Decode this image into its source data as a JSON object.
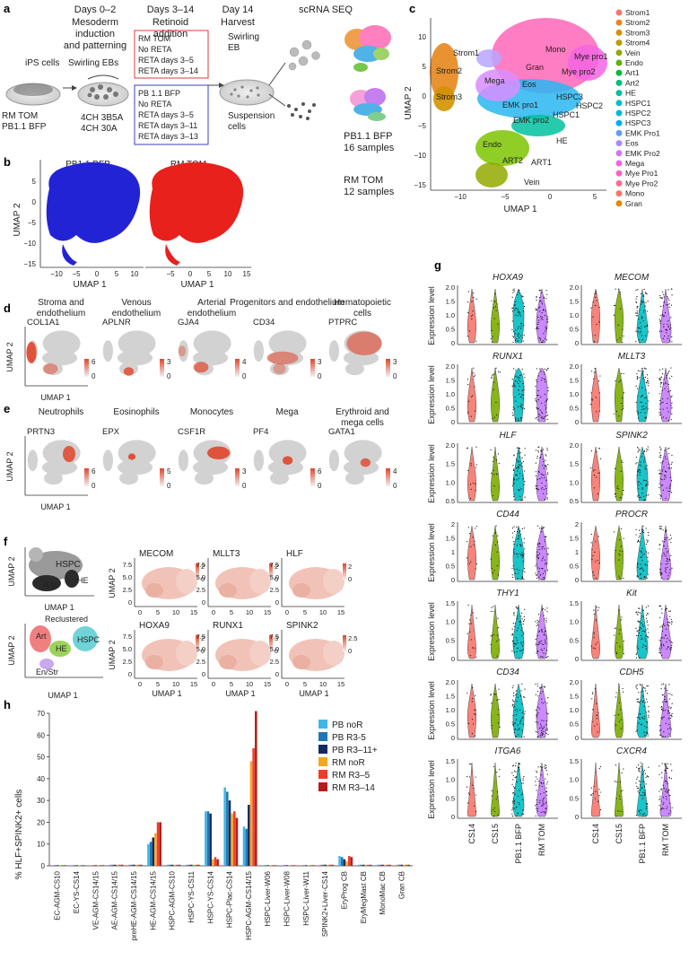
{
  "panel_labels": {
    "a": "a",
    "b": "b",
    "c": "c",
    "d": "d",
    "e": "e",
    "f": "f",
    "g": "g",
    "h": "h"
  },
  "panel_a": {
    "steps": [
      {
        "day": "Days 0–2",
        "desc": [
          "Mesoderm",
          "induction",
          "and patterning"
        ]
      },
      {
        "day": "Days 3–14",
        "desc": [
          "Retinoid",
          "addition"
        ]
      },
      {
        "day": "Day 14",
        "desc": [
          "Harvest"
        ]
      }
    ],
    "scrna": "scRNA SEQ",
    "ips": "iPS cells",
    "swirling_ebs": "Swirling EBs",
    "swirling_eb": [
      "Swirling",
      "EB"
    ],
    "rm_tom": "RM TOM",
    "pb_bfp": "PB1.1 BFP",
    "media": [
      "4CH 3B5A",
      "4CH 30A"
    ],
    "suspension": [
      "Suspension",
      "cells"
    ],
    "rm_box": [
      "RM TOM",
      "No RETA",
      "RETA days 3–5",
      "RETA days 3–14"
    ],
    "pb_box": [
      "PB 1.1 BFP",
      "No RETA",
      "RETA days 3–5",
      "RETA days 3–11",
      "RETA days 3–13"
    ],
    "pb_samples": [
      "PB1.1 BFP",
      "16 samples"
    ],
    "rm_samples": [
      "RM TOM",
      "12 samples"
    ]
  },
  "panel_b": {
    "titles": [
      "PB1.1 BFP",
      "RM TOM"
    ],
    "xlabel": "UMAP 1",
    "ylabel": "UMAP 2",
    "xticks": [
      "−10",
      "−5",
      "0",
      "5",
      "10",
      "−5",
      "0",
      "5",
      "10",
      "15"
    ],
    "yticks": [
      "5",
      "0",
      "−5",
      "−10",
      "−15"
    ]
  },
  "panel_c": {
    "xlabel": "UMAP 1",
    "ylabel": "UMAP 2",
    "xticks": [
      "−10",
      "−5",
      "0",
      "5"
    ],
    "yticks": [
      "10",
      "5",
      "0",
      "−5",
      "−10",
      "−15"
    ],
    "clusters": [
      {
        "name": "Strom1",
        "color": "#f8766d"
      },
      {
        "name": "Strom2",
        "color": "#e7861b"
      },
      {
        "name": "Strom3",
        "color": "#d39200"
      },
      {
        "name": "Strom4",
        "color": "#b79f00"
      },
      {
        "name": "Vein",
        "color": "#93aa00"
      },
      {
        "name": "Endo",
        "color": "#5eb300"
      },
      {
        "name": "Art1",
        "color": "#00ba38"
      },
      {
        "name": "Art2",
        "color": "#00bf74"
      },
      {
        "name": "HE",
        "color": "#00c19f"
      },
      {
        "name": "HSPC1",
        "color": "#00bfc4"
      },
      {
        "name": "HSPC2",
        "color": "#00b9e3"
      },
      {
        "name": "HSPC3",
        "color": "#00adfa"
      },
      {
        "name": "EMK Pro1",
        "color": "#619cff"
      },
      {
        "name": "Eos",
        "color": "#ae87ff"
      },
      {
        "name": "EMK Pro2",
        "color": "#db72fb"
      },
      {
        "name": "Mega",
        "color": "#f564e3"
      },
      {
        "name": "Mye Pro1",
        "color": "#ff61c3"
      },
      {
        "name": "Mye Pro2",
        "color": "#ff6c91"
      },
      {
        "name": "Mono",
        "color": "#f8766d"
      },
      {
        "name": "Gran",
        "color": "#e58700"
      }
    ],
    "annotations": [
      "Strom1",
      "Strom2",
      "Strom3",
      "Mega",
      "Gran",
      "Mono",
      "Mye pro1",
      "Mye pro2",
      "Eos",
      "HSPC3",
      "HSPC2",
      "HSPC1",
      "EMK pro1",
      "EMK pro2",
      "HE",
      "Endo",
      "ART2",
      "ART1",
      "Vein"
    ]
  },
  "panel_d": {
    "titles": [
      "Stroma and\nendothelium",
      "Venous\nendothelium",
      "Arterial\nendothelium",
      "Progenitors and endothelium",
      "Hematopoietic\ncells"
    ],
    "genes": [
      "COL1A1",
      "APLNR",
      "GJA4",
      "CD34",
      "PTPRC"
    ],
    "scale_max": [
      "6",
      "3",
      "4",
      "3",
      "3"
    ],
    "xlabel": "UMAP 1",
    "ylabel": "UMAP 2"
  },
  "panel_e": {
    "titles": [
      "Neutrophils",
      "Eosinophils",
      "Monocytes",
      "Mega",
      "Erythroid and\nmega cells"
    ],
    "genes": [
      "PRTN3",
      "EPX",
      "CSF1R",
      "PF4",
      "GATA1"
    ],
    "scale_max": [
      "6",
      "5",
      "3",
      "6",
      "4"
    ],
    "xlabel": "UMAP 1",
    "ylabel": "UMAP 2"
  },
  "panel_f": {
    "top_labels": [
      "HSPC",
      "Art1",
      "HE"
    ],
    "bottom_labels": [
      "Reclustered",
      "Art",
      "HE",
      "HSPC",
      "En/Str"
    ],
    "genes": [
      "MECOM",
      "MLLT3",
      "HLF",
      "HOXA9",
      "RUNX1",
      "SPINK2"
    ],
    "scale_max": [
      "2",
      "2",
      "2",
      "2",
      "3",
      "2.5"
    ],
    "xlabel": "UMAP 1",
    "ylabel": "UMAP 2"
  },
  "panel_g": {
    "ylabel": "Expression level",
    "groups": [
      "CS14",
      "CS15",
      "PB1.1 BFP",
      "RM TOM"
    ],
    "group_colors": [
      "#f8766d",
      "#7cae00",
      "#00bfc4",
      "#c77cff"
    ],
    "genes": [
      "HOXA9",
      "MECOM",
      "RUNX1",
      "MLLT3",
      "HLF",
      "SPINK2",
      "CD44",
      "PROCR",
      "THY1",
      "Kit",
      "CD34",
      "CDH5",
      "ITGA6",
      "CXCR4"
    ],
    "yticks": [
      [
        "2.0",
        "1.5",
        "1.0",
        "0.5",
        "0"
      ],
      [
        "2.0",
        "1.5",
        "1.0",
        "0.5",
        "0"
      ],
      [
        "2.0",
        "1.5",
        "1.0",
        "0.5",
        "0"
      ],
      [
        "2.0",
        "1.5",
        "1.0",
        "0.5",
        "0"
      ],
      [
        "2.0",
        "1.5",
        "1.0",
        "0.5"
      ],
      [
        "2.0",
        "1.5",
        "1.0",
        "0.5"
      ],
      [
        "2",
        "1.5",
        "1",
        "0.5",
        "0"
      ],
      [
        "2",
        "1.5",
        "1",
        "0.5",
        "0"
      ],
      [
        "1.5",
        "1.0",
        "0.5",
        "0"
      ],
      [
        "1.5",
        "1.0",
        "0.5",
        "0"
      ],
      [
        "2.0",
        "1.5",
        "1.0",
        "0.5",
        "0"
      ],
      [
        "2.0",
        "1.5",
        "1.0",
        "0.5",
        "0"
      ],
      [
        "1.5",
        "1.0",
        "0.5",
        "0"
      ],
      [
        "1.5",
        "1.0",
        "0.5",
        "0"
      ]
    ]
  },
  "chart_data": {
    "type": "bar",
    "ylabel": "% HLF+SPINK2+ cells",
    "ylim": [
      0,
      70
    ],
    "yticks": [
      "0",
      "10",
      "20",
      "30",
      "40",
      "50",
      "60",
      "70"
    ],
    "categories": [
      "EC-AGM-CS10",
      "EC-YS-CS14",
      "VE-AGM-CS14/15",
      "AE-AGM-CS14/15",
      "preHE-AGM-CS14/15",
      "HE-AGM-CS14/15",
      "HSPC-AGM-CS10",
      "HSPC-YS-CS11",
      "HSPC-YS-CS14",
      "HSPC-Plac-CS14",
      "HSPC-AGM-CS14/15",
      "HSPC-Liver-W06",
      "HSPC-Liver-W08",
      "HSPC-Liver-W11",
      "SPINK2+Liver-CS14",
      "EryProg CB",
      "EryMegMast CB",
      "MonoMac CB",
      "Gran CB"
    ],
    "series": [
      {
        "name": "PB noR",
        "color": "#41b6e6",
        "values": [
          0.3,
          0.3,
          0.3,
          0.5,
          0.5,
          10,
          0.5,
          0.5,
          25,
          36,
          18,
          0.3,
          0.3,
          0.3,
          0.5,
          4.5,
          0.5,
          0.5,
          0.5
        ]
      },
      {
        "name": "PB R3-5",
        "color": "#1f78b4",
        "values": [
          0.3,
          0.3,
          0.3,
          0.5,
          0.5,
          11,
          0.5,
          0.5,
          25,
          34,
          17,
          0.3,
          0.3,
          0.3,
          0.5,
          4,
          0.5,
          0.5,
          0.5
        ]
      },
      {
        "name": "PB R3–11+",
        "color": "#152a5e",
        "values": [
          0.3,
          0.3,
          0.3,
          0.5,
          0.5,
          13,
          0.5,
          0.5,
          24,
          30,
          28,
          0.3,
          0.3,
          0.3,
          0.5,
          3,
          0.5,
          0.5,
          0.5
        ]
      },
      {
        "name": "RM noR",
        "color": "#f5a623",
        "values": [
          0.3,
          0.3,
          0.3,
          0.5,
          0.5,
          15,
          0.5,
          0.5,
          3,
          24,
          48,
          0.3,
          0.3,
          0.3,
          0.5,
          2,
          0.5,
          0.5,
          0.5
        ]
      },
      {
        "name": "RM R3–5",
        "color": "#f03c28",
        "values": [
          0.3,
          0.3,
          0.3,
          0.5,
          0.5,
          20,
          0.5,
          0.5,
          4,
          25,
          54,
          0.3,
          0.3,
          0.3,
          0.5,
          4.5,
          0.5,
          0.5,
          0.5
        ]
      },
      {
        "name": "RM R3–14",
        "color": "#b71c1c",
        "values": [
          0.3,
          0.3,
          0.3,
          0.5,
          0.5,
          20,
          0.5,
          0.5,
          3,
          22,
          71,
          0.3,
          0.3,
          0.3,
          0.5,
          4,
          0.5,
          0.5,
          0.5
        ]
      }
    ]
  }
}
